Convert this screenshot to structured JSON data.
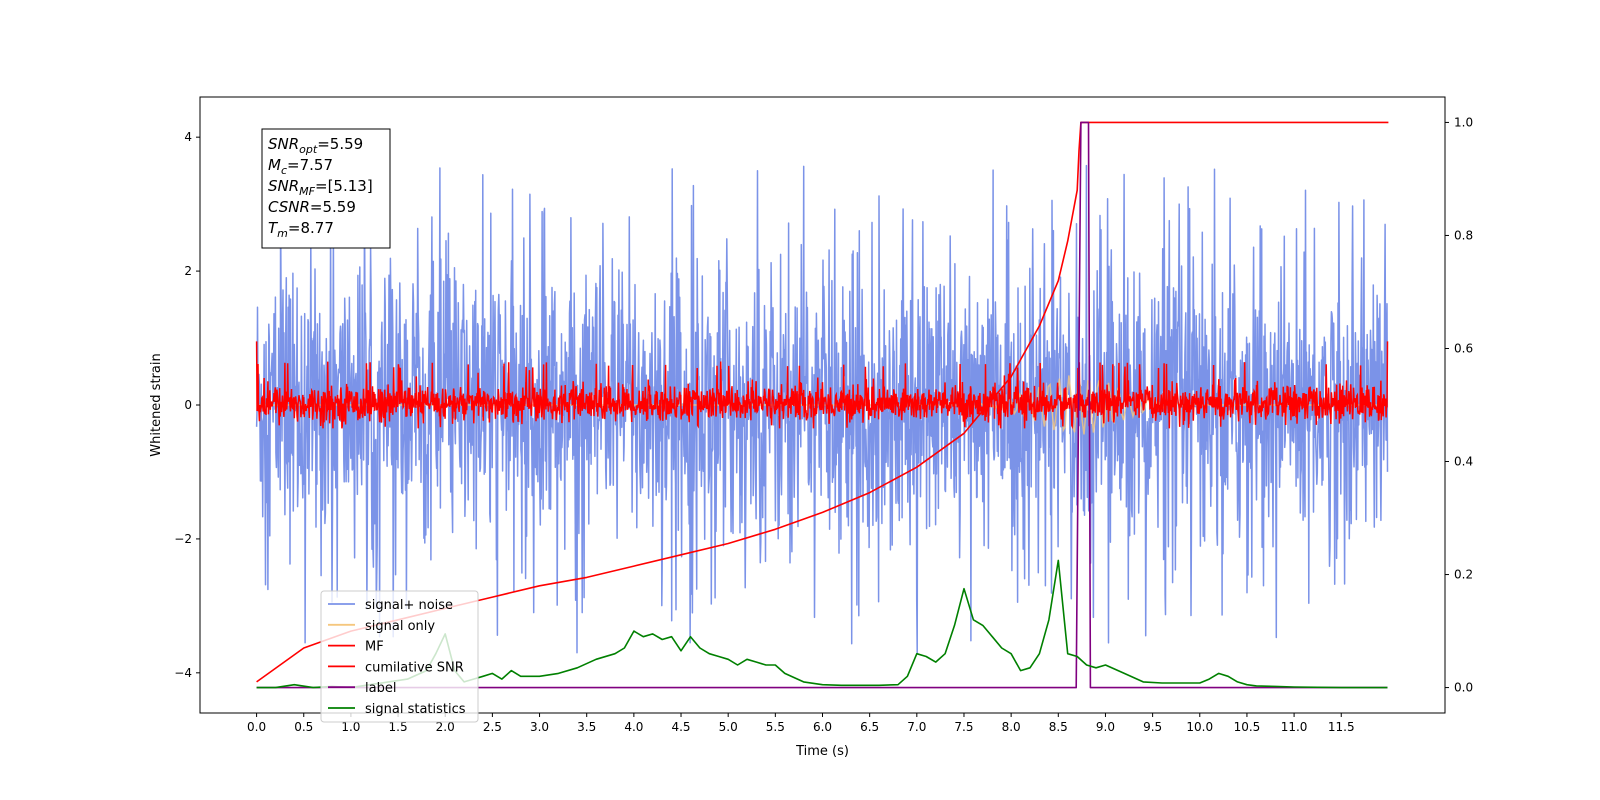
{
  "chart_data": {
    "type": "line",
    "xlabel": "Time (s)",
    "ylabel": "Whitened strain",
    "xlim": [
      -0.6,
      12.6
    ],
    "ylim": [
      -4.6,
      4.6
    ],
    "y2lim": [
      -0.045,
      1.045
    ],
    "x_ticks": [
      0.0,
      0.5,
      1.0,
      1.5,
      2.0,
      2.5,
      3.0,
      3.5,
      4.0,
      4.5,
      5.0,
      5.5,
      6.0,
      6.5,
      7.0,
      7.5,
      8.0,
      8.5,
      9.0,
      9.5,
      10.0,
      10.5,
      11.0,
      11.5
    ],
    "x_tick_labels": [
      "0.0",
      "0.5",
      "1.0",
      "1.5",
      "2.0",
      "2.5",
      "3.0",
      "3.5",
      "4.0",
      "4.5",
      "5.0",
      "5.5",
      "6.0",
      "6.5",
      "7.0",
      "7.5",
      "8.0",
      "8.5",
      "9.0",
      "9.5",
      "10.0",
      "10.5",
      "11.0",
      "11.5"
    ],
    "y_ticks": [
      -4,
      -2,
      0,
      2,
      4
    ],
    "y_tick_labels": [
      "−4",
      "−2",
      "0",
      "2",
      "4"
    ],
    "y2_ticks": [
      0.0,
      0.2,
      0.4,
      0.6,
      0.8,
      1.0
    ],
    "y2_tick_labels": [
      "0.0",
      "0.2",
      "0.4",
      "0.6",
      "0.8",
      "1.0"
    ],
    "annotation": {
      "lines": [
        {
          "main": "SNR",
          "sub": "opt",
          "value": "=5.59"
        },
        {
          "main": "M",
          "sub": "c",
          "value": "=7.57"
        },
        {
          "main": "SNR",
          "sub": "MF",
          "value": "=[5.13]"
        },
        {
          "main": "CSNR",
          "sub": "",
          "value": "=5.59"
        },
        {
          "main": "T",
          "sub": "m",
          "value": "=8.77"
        }
      ]
    },
    "legend_position": "lower-left",
    "series": [
      {
        "name": "signal+ noise",
        "color": "#7b93e8",
        "axis": "left",
        "style": "noise band, approx. amplitude ±2.5, peaks to ±4.1",
        "approx_range": [
          -3.7,
          4.1
        ]
      },
      {
        "name": "signal only",
        "color": "#f5c77e",
        "axis": "left",
        "approx_range": [
          -0.5,
          0.5
        ]
      },
      {
        "name": "MF",
        "color": "#ff0000",
        "axis": "left",
        "style": "noisy band around 0, approx. ±0.3",
        "approx_range": [
          -0.35,
          0.65
        ]
      },
      {
        "name": "cumilative SNR",
        "color": "#ff0000",
        "axis": "right",
        "x": [
          0.0,
          0.5,
          1.0,
          1.5,
          2.0,
          2.5,
          3.0,
          3.5,
          4.0,
          4.5,
          5.0,
          5.5,
          6.0,
          6.5,
          7.0,
          7.5,
          8.0,
          8.3,
          8.5,
          8.6,
          8.7,
          8.72,
          8.74,
          12.0
        ],
        "y": [
          0.01,
          0.07,
          0.1,
          0.12,
          0.14,
          0.16,
          0.18,
          0.195,
          0.215,
          0.235,
          0.255,
          0.28,
          0.31,
          0.345,
          0.39,
          0.45,
          0.55,
          0.64,
          0.72,
          0.79,
          0.88,
          0.95,
          1.0,
          1.0
        ]
      },
      {
        "name": "label",
        "color": "#800080",
        "axis": "right",
        "x": [
          0.0,
          8.69,
          8.74,
          8.82,
          8.84,
          11.99
        ],
        "y": [
          0.0,
          0.0,
          1.0,
          1.0,
          0.0,
          0.0
        ]
      },
      {
        "name": "signal statistics",
        "color": "#008000",
        "axis": "right",
        "x": [
          0.0,
          0.2,
          0.4,
          0.6,
          0.8,
          1.0,
          1.2,
          1.4,
          1.6,
          1.8,
          1.9,
          2.0,
          2.1,
          2.2,
          2.3,
          2.4,
          2.5,
          2.6,
          2.7,
          2.8,
          3.0,
          3.2,
          3.4,
          3.6,
          3.8,
          3.9,
          4.0,
          4.1,
          4.2,
          4.3,
          4.4,
          4.5,
          4.6,
          4.7,
          4.8,
          4.9,
          5.0,
          5.1,
          5.2,
          5.3,
          5.4,
          5.5,
          5.6,
          5.8,
          6.0,
          6.2,
          6.4,
          6.6,
          6.8,
          6.9,
          7.0,
          7.1,
          7.2,
          7.3,
          7.4,
          7.5,
          7.6,
          7.7,
          7.8,
          7.9,
          8.0,
          8.1,
          8.2,
          8.3,
          8.4,
          8.5,
          8.6,
          8.7,
          8.8,
          8.9,
          9.0,
          9.2,
          9.4,
          9.6,
          9.8,
          10.0,
          10.1,
          10.2,
          10.3,
          10.4,
          10.5,
          10.6,
          10.8,
          11.0,
          11.5,
          11.99
        ],
        "y": [
          0.0,
          0.0,
          0.005,
          0.0,
          0.002,
          0.0,
          0.005,
          0.01,
          0.015,
          0.03,
          0.06,
          0.095,
          0.03,
          0.01,
          0.015,
          0.02,
          0.025,
          0.015,
          0.03,
          0.02,
          0.02,
          0.025,
          0.035,
          0.05,
          0.06,
          0.07,
          0.1,
          0.09,
          0.095,
          0.085,
          0.09,
          0.065,
          0.09,
          0.07,
          0.06,
          0.055,
          0.05,
          0.04,
          0.05,
          0.045,
          0.04,
          0.04,
          0.025,
          0.01,
          0.005,
          0.004,
          0.004,
          0.004,
          0.005,
          0.02,
          0.06,
          0.055,
          0.045,
          0.06,
          0.11,
          0.175,
          0.12,
          0.11,
          0.09,
          0.07,
          0.06,
          0.03,
          0.035,
          0.06,
          0.12,
          0.225,
          0.06,
          0.055,
          0.04,
          0.035,
          0.04,
          0.025,
          0.01,
          0.008,
          0.008,
          0.008,
          0.015,
          0.025,
          0.02,
          0.01,
          0.005,
          0.003,
          0.002,
          0.001,
          0.0,
          0.0
        ]
      }
    ]
  }
}
